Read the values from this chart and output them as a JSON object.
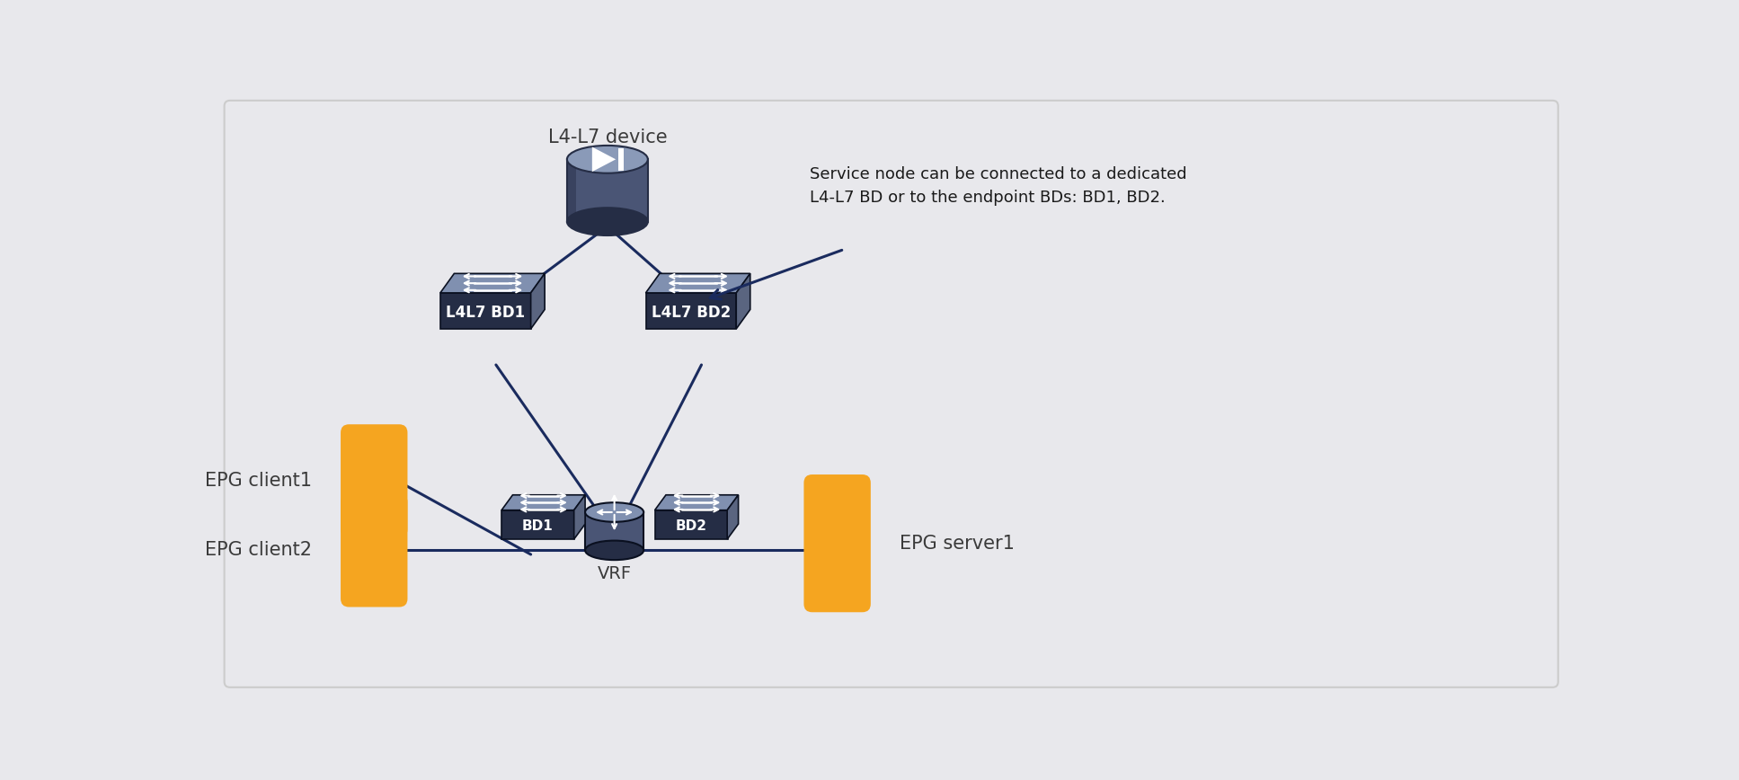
{
  "bg_color": "#e8e8ec",
  "line_color": "#1a2b5e",
  "line_width": 2.2,
  "annotation_text": "Service node can be connected to a dedicated\nL4-L7 BD or to the endpoint BDs: BD1, BD2.",
  "l4l7_label": "L4-L7 device",
  "l4l7bd1_label": "L4L7 BD1",
  "l4l7bd2_label": "L4L7 BD2",
  "bd1_label": "BD1",
  "bd2_label": "BD2",
  "vrf_label": "VRF",
  "epg_client1_label": "EPG client1",
  "epg_client2_label": "EPG client2",
  "epg_server1_label": "EPG server1",
  "text_color": "#3a3a3a",
  "epg_color": "#f5a520",
  "device_body": "#4a5575",
  "device_top": "#8a9ab8",
  "device_dark": "#252d45",
  "bd_front": "#252d45",
  "bd_top": "#8090b0",
  "bd_side": "#5a6580",
  "vrf_body": "#4a5575",
  "vrf_top": "#8090b0",
  "vrf_dark": "#252d45"
}
